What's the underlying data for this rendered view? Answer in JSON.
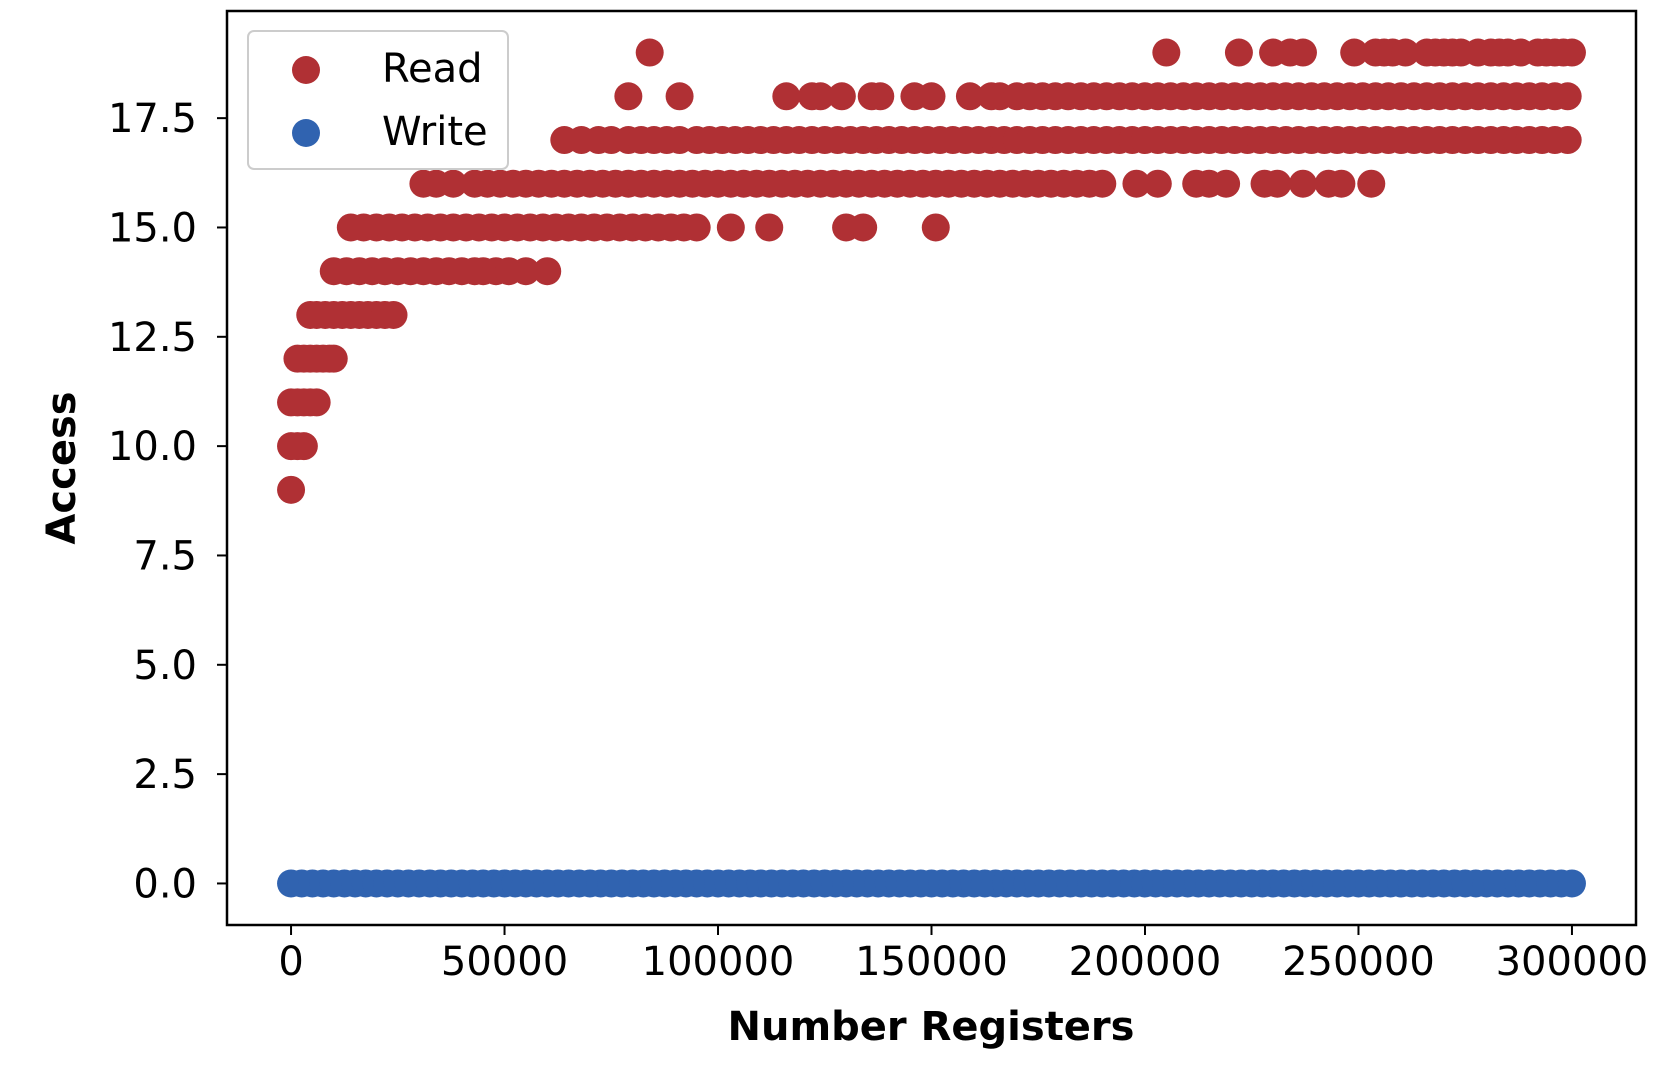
{
  "chart_data": {
    "type": "scatter",
    "xlabel": "Number Registers",
    "ylabel": "Access",
    "xlim": [
      -15000,
      315000
    ],
    "ylim": [
      -0.95,
      19.95
    ],
    "xticks": [
      0,
      50000,
      100000,
      150000,
      200000,
      250000,
      300000
    ],
    "xtick_labels": [
      "0",
      "50000",
      "100000",
      "150000",
      "200000",
      "250000",
      "300000"
    ],
    "yticks": [
      0.0,
      2.5,
      5.0,
      7.5,
      10.0,
      12.5,
      15.0,
      17.5
    ],
    "ytick_labels": [
      "0.0",
      "2.5",
      "5.0",
      "7.5",
      "10.0",
      "12.5",
      "15.0",
      "17.5"
    ],
    "grid": false,
    "legend_position": "top-left",
    "series": [
      {
        "name": "Read",
        "color": "#b03034",
        "points": [
          [
            0,
            9
          ],
          [
            0,
            10
          ],
          [
            1500,
            10
          ],
          [
            3000,
            10
          ],
          [
            0,
            11
          ],
          [
            1500,
            11
          ],
          [
            3000,
            11
          ],
          [
            4500,
            11
          ],
          [
            6000,
            11
          ],
          [
            1500,
            12
          ],
          [
            3000,
            12
          ],
          [
            4500,
            12
          ],
          [
            6000,
            12
          ],
          [
            7500,
            12
          ],
          [
            9000,
            12
          ],
          [
            10000,
            12
          ],
          [
            4500,
            13
          ],
          [
            6000,
            13
          ],
          [
            8000,
            13
          ],
          [
            10000,
            13
          ],
          [
            12000,
            13
          ],
          [
            14000,
            13
          ],
          [
            16000,
            13
          ],
          [
            18000,
            13
          ],
          [
            20000,
            13
          ],
          [
            22000,
            13
          ],
          [
            24000,
            13
          ],
          [
            10000,
            14
          ],
          [
            13000,
            14
          ],
          [
            16000,
            14
          ],
          [
            19000,
            14
          ],
          [
            22000,
            14
          ],
          [
            25000,
            14
          ],
          [
            28000,
            14
          ],
          [
            31000,
            14
          ],
          [
            34000,
            14
          ],
          [
            37000,
            14
          ],
          [
            40000,
            14
          ],
          [
            43000,
            14
          ],
          [
            45000,
            14
          ],
          [
            48000,
            14
          ],
          [
            51000,
            14
          ],
          [
            55000,
            14
          ],
          [
            60000,
            14
          ],
          [
            14000,
            15
          ],
          [
            17000,
            15
          ],
          [
            20000,
            15
          ],
          [
            23000,
            15
          ],
          [
            26000,
            15
          ],
          [
            29000,
            15
          ],
          [
            32000,
            15
          ],
          [
            35000,
            15
          ],
          [
            38000,
            15
          ],
          [
            41000,
            15
          ],
          [
            44000,
            15
          ],
          [
            47000,
            15
          ],
          [
            50000,
            15
          ],
          [
            53000,
            15
          ],
          [
            56000,
            15
          ],
          [
            59000,
            15
          ],
          [
            62000,
            15
          ],
          [
            65000,
            15
          ],
          [
            68000,
            15
          ],
          [
            71000,
            15
          ],
          [
            74000,
            15
          ],
          [
            77000,
            15
          ],
          [
            80000,
            15
          ],
          [
            83000,
            15
          ],
          [
            86000,
            15
          ],
          [
            89000,
            15
          ],
          [
            92000,
            15
          ],
          [
            95000,
            15
          ],
          [
            103000,
            15
          ],
          [
            112000,
            15
          ],
          [
            130000,
            15
          ],
          [
            134000,
            15
          ],
          [
            151000,
            15
          ],
          [
            31000,
            16
          ],
          [
            34000,
            16
          ],
          [
            38000,
            16
          ],
          [
            43000,
            16
          ],
          [
            46000,
            16
          ],
          [
            49000,
            16
          ],
          [
            52000,
            16
          ],
          [
            55000,
            16
          ],
          [
            58000,
            16
          ],
          [
            61000,
            16
          ],
          [
            64000,
            16
          ],
          [
            67000,
            16
          ],
          [
            70000,
            16
          ],
          [
            73000,
            16
          ],
          [
            76000,
            16
          ],
          [
            79000,
            16
          ],
          [
            82000,
            16
          ],
          [
            85000,
            16
          ],
          [
            88000,
            16
          ],
          [
            91000,
            16
          ],
          [
            94000,
            16
          ],
          [
            97000,
            16
          ],
          [
            100000,
            16
          ],
          [
            103000,
            16
          ],
          [
            106000,
            16
          ],
          [
            109000,
            16
          ],
          [
            112000,
            16
          ],
          [
            115000,
            16
          ],
          [
            118000,
            16
          ],
          [
            121000,
            16
          ],
          [
            124000,
            16
          ],
          [
            127000,
            16
          ],
          [
            130000,
            16
          ],
          [
            133000,
            16
          ],
          [
            136000,
            16
          ],
          [
            139000,
            16
          ],
          [
            142000,
            16
          ],
          [
            145000,
            16
          ],
          [
            148000,
            16
          ],
          [
            151000,
            16
          ],
          [
            154000,
            16
          ],
          [
            157000,
            16
          ],
          [
            160000,
            16
          ],
          [
            163000,
            16
          ],
          [
            166000,
            16
          ],
          [
            169000,
            16
          ],
          [
            172000,
            16
          ],
          [
            175000,
            16
          ],
          [
            178000,
            16
          ],
          [
            181000,
            16
          ],
          [
            184000,
            16
          ],
          [
            187000,
            16
          ],
          [
            190000,
            16
          ],
          [
            198000,
            16
          ],
          [
            203000,
            16
          ],
          [
            212000,
            16
          ],
          [
            215000,
            16
          ],
          [
            219000,
            16
          ],
          [
            228000,
            16
          ],
          [
            231000,
            16
          ],
          [
            237000,
            16
          ],
          [
            243000,
            16
          ],
          [
            246000,
            16
          ],
          [
            253000,
            16
          ],
          [
            64000,
            17
          ],
          [
            68000,
            17
          ],
          [
            72000,
            17
          ],
          [
            75000,
            17
          ],
          [
            79000,
            17
          ],
          [
            82000,
            17
          ],
          [
            85000,
            17
          ],
          [
            88000,
            17
          ],
          [
            91000,
            17
          ],
          [
            95000,
            17
          ],
          [
            98000,
            17
          ],
          [
            101000,
            17
          ],
          [
            104000,
            17
          ],
          [
            107000,
            17
          ],
          [
            110000,
            17
          ],
          [
            113000,
            17
          ],
          [
            116000,
            17
          ],
          [
            119000,
            17
          ],
          [
            122000,
            17
          ],
          [
            125000,
            17
          ],
          [
            128000,
            17
          ],
          [
            131000,
            17
          ],
          [
            134000,
            17
          ],
          [
            137000,
            17
          ],
          [
            140000,
            17
          ],
          [
            143000,
            17
          ],
          [
            146000,
            17
          ],
          [
            149000,
            17
          ],
          [
            152000,
            17
          ],
          [
            155000,
            17
          ],
          [
            158000,
            17
          ],
          [
            161000,
            17
          ],
          [
            164000,
            17
          ],
          [
            167000,
            17
          ],
          [
            170000,
            17
          ],
          [
            173000,
            17
          ],
          [
            176000,
            17
          ],
          [
            179000,
            17
          ],
          [
            182000,
            17
          ],
          [
            185000,
            17
          ],
          [
            188000,
            17
          ],
          [
            191000,
            17
          ],
          [
            194000,
            17
          ],
          [
            197000,
            17
          ],
          [
            200000,
            17
          ],
          [
            203000,
            17
          ],
          [
            206000,
            17
          ],
          [
            209000,
            17
          ],
          [
            212000,
            17
          ],
          [
            215000,
            17
          ],
          [
            218000,
            17
          ],
          [
            221000,
            17
          ],
          [
            224000,
            17
          ],
          [
            227000,
            17
          ],
          [
            230000,
            17
          ],
          [
            233000,
            17
          ],
          [
            236000,
            17
          ],
          [
            239000,
            17
          ],
          [
            242000,
            17
          ],
          [
            245000,
            17
          ],
          [
            248000,
            17
          ],
          [
            251000,
            17
          ],
          [
            254000,
            17
          ],
          [
            257000,
            17
          ],
          [
            260000,
            17
          ],
          [
            263000,
            17
          ],
          [
            266000,
            17
          ],
          [
            269000,
            17
          ],
          [
            272000,
            17
          ],
          [
            275000,
            17
          ],
          [
            278000,
            17
          ],
          [
            281000,
            17
          ],
          [
            284000,
            17
          ],
          [
            287000,
            17
          ],
          [
            290000,
            17
          ],
          [
            293000,
            17
          ],
          [
            296000,
            17
          ],
          [
            299000,
            17
          ],
          [
            79000,
            18
          ],
          [
            91000,
            18
          ],
          [
            116000,
            18
          ],
          [
            122000,
            18
          ],
          [
            124000,
            18
          ],
          [
            129000,
            18
          ],
          [
            136000,
            18
          ],
          [
            138000,
            18
          ],
          [
            146000,
            18
          ],
          [
            150000,
            18
          ],
          [
            159000,
            18
          ],
          [
            164000,
            18
          ],
          [
            166000,
            18
          ],
          [
            170000,
            18
          ],
          [
            173000,
            18
          ],
          [
            176000,
            18
          ],
          [
            179000,
            18
          ],
          [
            182000,
            18
          ],
          [
            185000,
            18
          ],
          [
            188000,
            18
          ],
          [
            191000,
            18
          ],
          [
            194000,
            18
          ],
          [
            197000,
            18
          ],
          [
            200000,
            18
          ],
          [
            203000,
            18
          ],
          [
            206000,
            18
          ],
          [
            209000,
            18
          ],
          [
            212000,
            18
          ],
          [
            215000,
            18
          ],
          [
            218000,
            18
          ],
          [
            221000,
            18
          ],
          [
            224000,
            18
          ],
          [
            227000,
            18
          ],
          [
            230000,
            18
          ],
          [
            233000,
            18
          ],
          [
            236000,
            18
          ],
          [
            239000,
            18
          ],
          [
            242000,
            18
          ],
          [
            245000,
            18
          ],
          [
            248000,
            18
          ],
          [
            251000,
            18
          ],
          [
            254000,
            18
          ],
          [
            257000,
            18
          ],
          [
            260000,
            18
          ],
          [
            263000,
            18
          ],
          [
            266000,
            18
          ],
          [
            269000,
            18
          ],
          [
            272000,
            18
          ],
          [
            275000,
            18
          ],
          [
            278000,
            18
          ],
          [
            281000,
            18
          ],
          [
            284000,
            18
          ],
          [
            287000,
            18
          ],
          [
            290000,
            18
          ],
          [
            293000,
            18
          ],
          [
            296000,
            18
          ],
          [
            299000,
            18
          ],
          [
            84000,
            19
          ],
          [
            205000,
            19
          ],
          [
            222000,
            19
          ],
          [
            230000,
            19
          ],
          [
            234000,
            19
          ],
          [
            237000,
            19
          ],
          [
            249000,
            19
          ],
          [
            254000,
            19
          ],
          [
            256000,
            19
          ],
          [
            258000,
            19
          ],
          [
            261000,
            19
          ],
          [
            266000,
            19
          ],
          [
            268000,
            19
          ],
          [
            270000,
            19
          ],
          [
            272000,
            19
          ],
          [
            274000,
            19
          ],
          [
            278000,
            19
          ],
          [
            281000,
            19
          ],
          [
            283000,
            19
          ],
          [
            285000,
            19
          ],
          [
            288000,
            19
          ],
          [
            292000,
            19
          ],
          [
            294000,
            19
          ],
          [
            296000,
            19
          ],
          [
            298000,
            19
          ],
          [
            300000,
            19
          ]
        ]
      },
      {
        "name": "Write",
        "color": "#3063b0",
        "points_x_range": [
          0,
          300000
        ],
        "points_count": 121,
        "y_constant": 0
      }
    ]
  }
}
